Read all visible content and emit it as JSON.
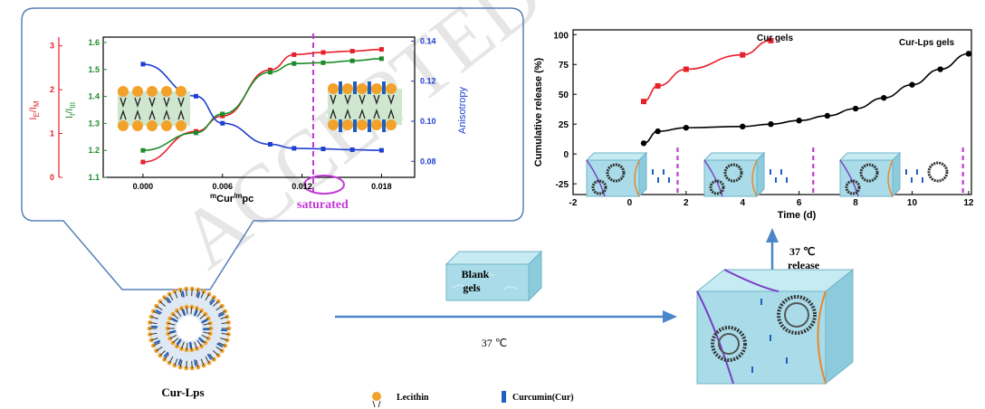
{
  "watermark": "ACCEPTED MANUSCRIPT",
  "left_chart": {
    "xlabel": "m_Cur/m_pc",
    "xlabel_main": "m",
    "xlabel_sub1": "Cur",
    "xlabel_mid": "/m",
    "xlabel_sub2": "pc",
    "ylabel_red": "I_E/I_M",
    "ylabel_red_main1": "I",
    "ylabel_red_sub1": "E",
    "ylabel_red_main2": "/I",
    "ylabel_red_sub2": "M",
    "ylabel_green": "I_I/I_III",
    "ylabel_green_main1": "I",
    "ylabel_green_sub1": "I",
    "ylabel_green_main2": "/I",
    "ylabel_green_sub2": "III",
    "ylabel_blue": "Anisotropy",
    "x_ticks": [
      "0.000",
      "0.006",
      "0.012",
      "0.018"
    ],
    "red_ticks": [
      "0",
      "1",
      "2",
      "3"
    ],
    "green_ticks": [
      "1.1",
      "1.2",
      "1.3",
      "1.4",
      "1.5",
      "1.6"
    ],
    "blue_ticks": [
      "0.08",
      "0.10",
      "0.12",
      "0.14"
    ],
    "saturated_label": "saturated",
    "colors": {
      "red": "#e8202a",
      "green": "#1e8c2a",
      "blue": "#1f3fd0",
      "magenta": "#c23ad6"
    }
  },
  "chart_data": [
    {
      "type": "line",
      "ylabel": "I_I/I_III",
      "ylim": [
        1.1,
        1.6
      ],
      "x": [
        0.0,
        0.004,
        0.006,
        0.0096,
        0.0114,
        0.0136,
        0.0158,
        0.018
      ],
      "series": [
        {
          "name": "I_I/I_III",
          "values": [
            1.2,
            1.265,
            1.335,
            1.49,
            1.522,
            1.525,
            1.532,
            1.54
          ]
        }
      ]
    },
    {
      "type": "line",
      "ylabel": "I_E/I_M",
      "ylim": [
        0,
        3
      ],
      "x": [
        0.0,
        0.004,
        0.006,
        0.0096,
        0.0114,
        0.0136,
        0.0158,
        0.018
      ],
      "series": [
        {
          "name": "I_E/I_M",
          "values": [
            0.35,
            1.05,
            1.4,
            2.45,
            2.8,
            2.85,
            2.88,
            2.92
          ]
        }
      ]
    },
    {
      "type": "line",
      "ylabel": "Anisotropy",
      "ylim": [
        0.07,
        0.14
      ],
      "x": [
        0.0,
        0.004,
        0.006,
        0.0096,
        0.0114,
        0.0136,
        0.0158,
        0.018
      ],
      "series": [
        {
          "name": "Anisotropy",
          "values": [
            0.1285,
            0.1125,
            0.099,
            0.0885,
            0.0865,
            0.0862,
            0.0858,
            0.0855
          ]
        }
      ]
    },
    {
      "type": "line",
      "xlabel": "Time (d)",
      "ylabel": "Cumulative release (%)",
      "xlim": [
        -2,
        12
      ],
      "ylim": [
        -25,
        100
      ],
      "x_ticks": [
        "-2",
        "0",
        "2",
        "4",
        "6",
        "8",
        "10",
        "12"
      ],
      "y_ticks": [
        "-25",
        "0",
        "25",
        "50",
        "75",
        "100"
      ],
      "series": [
        {
          "name": "Cur gels",
          "x": [
            0.5,
            1,
            2,
            4,
            5
          ],
          "values": [
            44,
            57,
            71,
            83,
            95
          ]
        },
        {
          "name": "Cur-Lps gels",
          "x": [
            0.5,
            1,
            2,
            4,
            5,
            6,
            7,
            8,
            9,
            10,
            11,
            12
          ],
          "values": [
            9,
            19,
            22,
            23,
            25,
            28,
            32,
            38,
            47,
            58,
            71,
            84
          ]
        }
      ],
      "dashed_markers_x": [
        1.7,
        6.5,
        11.8
      ]
    }
  ],
  "right_chart": {
    "xlabel": "Time (d)",
    "ylabel": "Cumulative release (%)",
    "series_labels": [
      "Cur gels",
      "Cur-Lps gels"
    ],
    "colors": {
      "cur": "#e8202a",
      "lps": "#000000",
      "dash": "#c23ad6"
    }
  },
  "labels": {
    "cur_lps": "Cur-Lps",
    "blank_gels_line1": "Blank",
    "blank_gels_line2": "gels",
    "temp_arrow": "37 ℃",
    "release_line1": "37 ℃",
    "release_line2": "release",
    "legend_lecithin": "Lecithin",
    "legend_curcumin": "Curcumin(Cur)"
  },
  "colors": {
    "arrow": "#4a86c8",
    "gel": "#a9dce8",
    "gel_dark": "#6fb3c9",
    "bubble": "#ffffff",
    "lecithin": "#f2a22a"
  }
}
